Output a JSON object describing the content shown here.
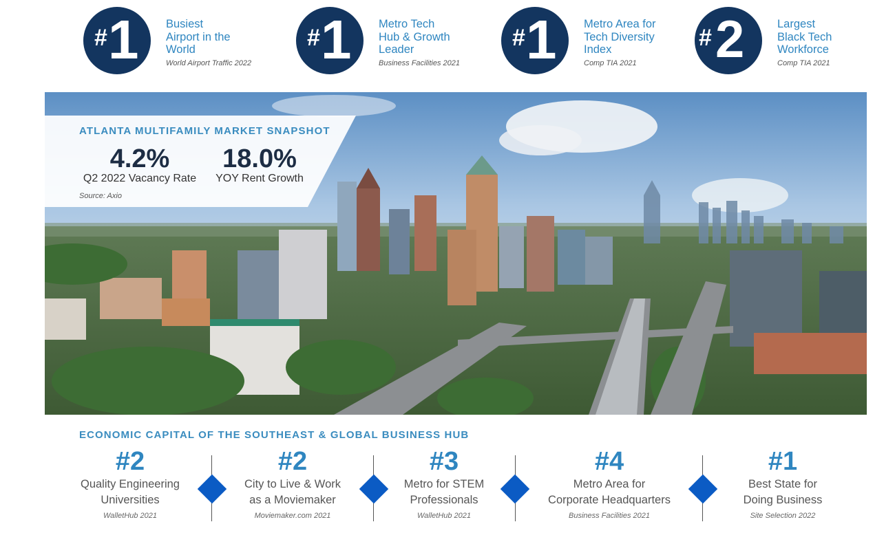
{
  "top_rankings": [
    {
      "rank_hash": "#",
      "rank_num": "1",
      "title": "Busiest\nAirport in the\nWorld",
      "source": "World Airport Traffic 2022"
    },
    {
      "rank_hash": "#",
      "rank_num": "1",
      "title": "Metro Tech\nHub & Growth\nLeader",
      "source": "Business Facilities 2021"
    },
    {
      "rank_hash": "#",
      "rank_num": "1",
      "title": "Metro Area for\nTech Diversity\nIndex",
      "source": "Comp TIA 2021"
    },
    {
      "rank_hash": "#",
      "rank_num": "2",
      "title": "Largest\nBlack Tech\nWorkforce",
      "source": "Comp TIA 2021"
    }
  ],
  "snapshot": {
    "title": "ATLANTA MULTIFAMILY MARKET SNAPSHOT",
    "stats": [
      {
        "value": "4.2%",
        "label": "Q2 2022 Vacancy Rate"
      },
      {
        "value": "18.0%",
        "label": "YOY Rent Growth"
      }
    ],
    "source": "Source: Axio"
  },
  "bottom": {
    "heading": "ECONOMIC CAPITAL OF THE SOUTHEAST & GLOBAL BUSINESS HUB",
    "items": [
      {
        "rank": "#2",
        "title": "Quality Engineering\nUniversities",
        "source": "WalletHub 2021"
      },
      {
        "rank": "#2",
        "title": "City to Live & Work\nas a Moviemaker",
        "source": "Moviemaker.com 2021"
      },
      {
        "rank": "#3",
        "title": "Metro for STEM\nProfessionals",
        "source": "WalletHub 2021"
      },
      {
        "rank": "#4",
        "title": "Metro Area for\nCorporate Headquarters",
        "source": "Business Facilities 2021"
      },
      {
        "rank": "#1",
        "title": "Best State for\nDoing Business",
        "source": "Site Selection 2022"
      }
    ]
  },
  "colors": {
    "navy": "#13355f",
    "accent_blue": "#2f86c0",
    "diamond_blue": "#0b5bc4"
  }
}
